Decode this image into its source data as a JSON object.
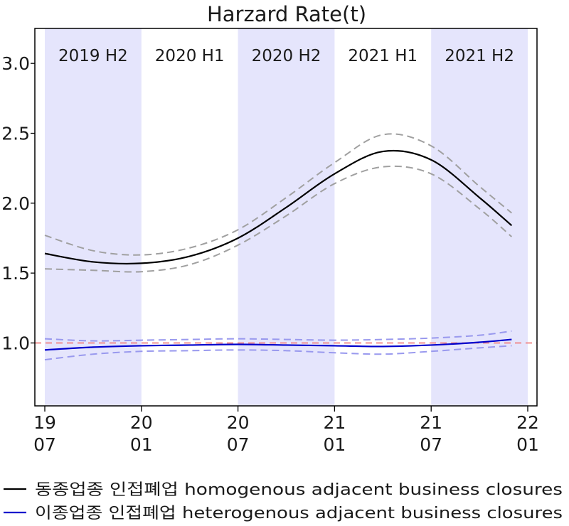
{
  "chart_data": {
    "type": "line",
    "title": "Harzard Rate(t)",
    "xlabel": "",
    "ylabel": "",
    "x_range": [
      "2019-07",
      "2022-01"
    ],
    "ylim": [
      0.55,
      3.25
    ],
    "y_ticks": [
      {
        "value": 1.0,
        "label": "1.0"
      },
      {
        "value": 1.5,
        "label": "1.5"
      },
      {
        "value": 2.0,
        "label": "2.0"
      },
      {
        "value": 2.5,
        "label": "2.5"
      },
      {
        "value": 3.0,
        "label": "3.0"
      }
    ],
    "x_ticks": [
      {
        "x": "2019-07",
        "line1": "19",
        "line2": "07"
      },
      {
        "x": "2020-01",
        "line1": "20",
        "line2": "01"
      },
      {
        "x": "2020-07",
        "line1": "20",
        "line2": "07"
      },
      {
        "x": "2021-01",
        "line1": "21",
        "line2": "01"
      },
      {
        "x": "2021-07",
        "line1": "21",
        "line2": "07"
      },
      {
        "x": "2022-01",
        "line1": "22",
        "line2": "01"
      }
    ],
    "periods": [
      {
        "label": "2019 H2",
        "start": "2019-07",
        "end": "2020-01",
        "shaded": true
      },
      {
        "label": "2020 H1",
        "start": "2020-01",
        "end": "2020-07",
        "shaded": false
      },
      {
        "label": "2020 H2",
        "start": "2020-07",
        "end": "2021-01",
        "shaded": true
      },
      {
        "label": "2021 H1",
        "start": "2021-01",
        "end": "2021-07",
        "shaded": false
      },
      {
        "label": "2021 H2",
        "start": "2021-07",
        "end": "2022-01",
        "shaded": true
      }
    ],
    "reference_line": {
      "y": 1.0,
      "color": "#f08080",
      "style": "dashed"
    },
    "series": [
      {
        "name": "동종업종 인접폐업 homogenous adjacent business closures",
        "color": "#000000",
        "band_color": "#a0a0a0",
        "x": [
          "2019-07",
          "2019-10",
          "2020-01",
          "2020-04",
          "2020-07",
          "2020-10",
          "2021-01",
          "2021-04",
          "2021-07",
          "2021-10",
          "2021-12"
        ],
        "y": [
          1.64,
          1.58,
          1.57,
          1.62,
          1.75,
          1.97,
          2.21,
          2.37,
          2.31,
          2.04,
          1.84
        ],
        "lower": [
          1.53,
          1.52,
          1.51,
          1.56,
          1.7,
          1.91,
          2.14,
          2.26,
          2.21,
          1.96,
          1.76
        ],
        "upper": [
          1.77,
          1.66,
          1.63,
          1.68,
          1.81,
          2.04,
          2.29,
          2.49,
          2.41,
          2.12,
          1.93
        ]
      },
      {
        "name": "이종업종 인접폐업 heterogenous adjacent business closures",
        "color": "#0000cc",
        "band_color": "#9999ee",
        "x": [
          "2019-07",
          "2019-10",
          "2020-01",
          "2020-04",
          "2020-07",
          "2020-10",
          "2021-01",
          "2021-04",
          "2021-07",
          "2021-10",
          "2021-12"
        ],
        "y": [
          0.95,
          0.97,
          0.98,
          0.985,
          0.99,
          0.985,
          0.98,
          0.975,
          0.985,
          1.005,
          1.025
        ],
        "lower": [
          0.88,
          0.92,
          0.94,
          0.945,
          0.95,
          0.945,
          0.93,
          0.92,
          0.94,
          0.965,
          0.98
        ],
        "upper": [
          1.03,
          1.015,
          1.02,
          1.025,
          1.03,
          1.025,
          1.02,
          1.025,
          1.035,
          1.055,
          1.085
        ]
      }
    ],
    "legend_position": "bottom"
  }
}
